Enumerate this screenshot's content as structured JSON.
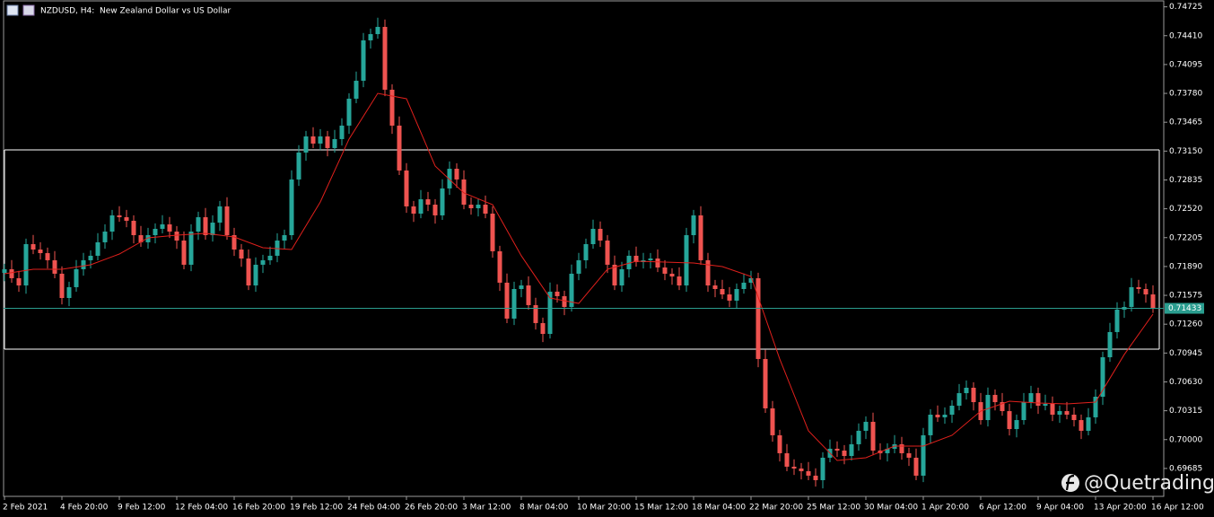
{
  "chart_data": {
    "type": "candlestick",
    "title": "NZDUSD, H4:  New Zealand Dollar vs US Dollar",
    "watermark": "@Quetrading",
    "up_color": "#26a69a",
    "down_color": "#ef5350",
    "ylim": [
      0.6939,
      0.7478
    ],
    "yticks": [
      0.74725,
      {
        "value": 0.7441,
        "label": "0.74410"
      },
      0.74095,
      {
        "value": 0.7378,
        "label": "0.73780"
      },
      0.73465,
      {
        "value": 0.7315,
        "label": "0.73150"
      },
      0.72835,
      {
        "value": 0.7252,
        "label": "0.72520"
      },
      0.72205,
      {
        "value": 0.7189,
        "label": "0.71890"
      },
      0.71575,
      {
        "value": 0.7126,
        "label": "0.71260"
      },
      0.70945,
      {
        "value": 0.7063,
        "label": "0.70630"
      },
      0.70315,
      {
        "value": 0.7,
        "label": "0.70000"
      },
      0.69685
    ],
    "price": 0.71433,
    "price_color": "#2a9d8f",
    "rectangle": [
      0.73163,
      0.70987
    ],
    "categories": [
      "2 Feb 2021",
      null,
      null,
      null,
      null,
      null,
      null,
      null,
      "4 Feb 20:00",
      null,
      null,
      null,
      null,
      null,
      null,
      null,
      "9 Feb 12:00",
      null,
      null,
      null,
      null,
      null,
      null,
      null,
      "12 Feb 04:00",
      null,
      null,
      null,
      null,
      null,
      null,
      null,
      "16 Feb 20:00",
      null,
      null,
      null,
      null,
      null,
      null,
      null,
      "19 Feb 12:00",
      null,
      null,
      null,
      null,
      null,
      null,
      null,
      "24 Feb 04:00",
      null,
      null,
      null,
      null,
      null,
      null,
      null,
      "26 Feb 20:00",
      null,
      null,
      null,
      null,
      null,
      null,
      null,
      "3 Mar 12:00",
      null,
      null,
      null,
      null,
      null,
      null,
      null,
      "8 Mar 04:00",
      null,
      null,
      null,
      null,
      null,
      null,
      null,
      "10 Mar 20:00",
      null,
      null,
      null,
      null,
      null,
      null,
      null,
      "15 Mar 12:00",
      null,
      null,
      null,
      null,
      null,
      null,
      null,
      "18 Mar 04:00",
      null,
      null,
      null,
      null,
      null,
      null,
      null,
      "22 Mar 20:00",
      null,
      null,
      null,
      null,
      null,
      null,
      null,
      "25 Mar 12:00",
      null,
      null,
      null,
      null,
      null,
      null,
      null,
      "30 Mar 04:00",
      null,
      null,
      null,
      null,
      null,
      null,
      null,
      "1 Apr 20:00",
      null,
      null,
      null,
      null,
      null,
      null,
      null,
      "6 Apr 12:00",
      null,
      null,
      null,
      null,
      null,
      null,
      null,
      "9 Apr 04:00",
      null,
      null,
      null,
      null,
      null,
      null,
      null,
      "13 Apr 20:00",
      null,
      null,
      null,
      null,
      null,
      null,
      null,
      "16 Apr 12:00"
    ],
    "ohlc": [
      [
        0.7182,
        0.7192,
        0.7173,
        0.7186
      ],
      [
        0.7186,
        0.7196,
        0.71712,
        0.71762
      ],
      [
        0.71762,
        0.71842,
        0.71613,
        0.71683
      ],
      [
        0.71683,
        0.72194,
        0.71593,
        0.72134
      ],
      [
        0.72134,
        0.72234,
        0.72025,
        0.72075
      ],
      [
        0.72075,
        0.72155,
        0.71966,
        0.72036
      ],
      [
        0.72036,
        0.72096,
        0.71868,
        0.71958
      ],
      [
        0.71958,
        0.72058,
        0.71761,
        0.71811
      ],
      [
        0.71811,
        0.71891,
        0.71476,
        0.71546
      ],
      [
        0.71546,
        0.71724,
        0.71456,
        0.71664
      ],
      [
        0.71664,
        0.7196,
        0.71614,
        0.7186
      ],
      [
        0.7186,
        0.72038,
        0.7179,
        0.71958
      ],
      [
        0.71958,
        0.72067,
        0.71868,
        0.72007
      ],
      [
        0.72007,
        0.72254,
        0.71957,
        0.72154
      ],
      [
        0.72154,
        0.72351,
        0.72084,
        0.72271
      ],
      [
        0.72271,
        0.72508,
        0.72181,
        0.72448
      ],
      [
        0.72448,
        0.72548,
        0.72378,
        0.72428
      ],
      [
        0.72428,
        0.72508,
        0.72319,
        0.72389
      ],
      [
        0.72389,
        0.72449,
        0.72142,
        0.72232
      ],
      [
        0.72232,
        0.72332,
        0.72104,
        0.72154
      ],
      [
        0.72154,
        0.72312,
        0.72084,
        0.72232
      ],
      [
        0.72232,
        0.72361,
        0.72142,
        0.72301
      ],
      [
        0.72301,
        0.7245,
        0.72251,
        0.7235
      ],
      [
        0.7235,
        0.7243,
        0.72201,
        0.72271
      ],
      [
        0.72271,
        0.72331,
        0.72083,
        0.72173
      ],
      [
        0.72173,
        0.72273,
        0.71859,
        0.71909
      ],
      [
        0.71909,
        0.72351,
        0.71839,
        0.72271
      ],
      [
        0.72271,
        0.72488,
        0.72181,
        0.72428
      ],
      [
        0.72428,
        0.72528,
        0.72182,
        0.72232
      ],
      [
        0.72232,
        0.72449,
        0.72162,
        0.72369
      ],
      [
        0.72369,
        0.72606,
        0.72279,
        0.72546
      ],
      [
        0.72546,
        0.72646,
        0.72182,
        0.72232
      ],
      [
        0.72232,
        0.72312,
        0.72005,
        0.72075
      ],
      [
        0.72075,
        0.72135,
        0.71887,
        0.71977
      ],
      [
        0.71977,
        0.72077,
        0.71633,
        0.71683
      ],
      [
        0.71683,
        0.71989,
        0.71613,
        0.71909
      ],
      [
        0.71909,
        0.72018,
        0.71819,
        0.71958
      ],
      [
        0.71958,
        0.72107,
        0.71908,
        0.72007
      ],
      [
        0.72007,
        0.72253,
        0.71937,
        0.72173
      ],
      [
        0.72173,
        0.72292,
        0.72083,
        0.72232
      ],
      [
        0.72232,
        0.7294,
        0.72182,
        0.7284
      ],
      [
        0.7284,
        0.73214,
        0.7277,
        0.73134
      ],
      [
        0.73134,
        0.7337,
        0.73044,
        0.7331
      ],
      [
        0.7331,
        0.7341,
        0.73182,
        0.73232
      ],
      [
        0.73232,
        0.7339,
        0.73162,
        0.7331
      ],
      [
        0.7331,
        0.7337,
        0.73093,
        0.73183
      ],
      [
        0.73183,
        0.73381,
        0.73133,
        0.73281
      ],
      [
        0.73281,
        0.73508,
        0.73211,
        0.73428
      ],
      [
        0.73428,
        0.73782,
        0.73338,
        0.73722
      ],
      [
        0.73722,
        0.74018,
        0.73672,
        0.73918
      ],
      [
        0.73918,
        0.74439,
        0.73848,
        0.74359
      ],
      [
        0.74359,
        0.74487,
        0.74269,
        0.74427
      ],
      [
        0.74427,
        0.74606,
        0.74377,
        0.74506
      ],
      [
        0.74506,
        0.74586,
        0.7375,
        0.7382
      ],
      [
        0.7382,
        0.7388,
        0.73338,
        0.73428
      ],
      [
        0.73428,
        0.73528,
        0.72888,
        0.72938
      ],
      [
        0.72938,
        0.73018,
        0.72476,
        0.72546
      ],
      [
        0.72546,
        0.72606,
        0.72377,
        0.72467
      ],
      [
        0.72467,
        0.72724,
        0.72417,
        0.72624
      ],
      [
        0.72624,
        0.72704,
        0.72495,
        0.72565
      ],
      [
        0.72565,
        0.72625,
        0.72358,
        0.72448
      ],
      [
        0.72448,
        0.72842,
        0.72398,
        0.72742
      ],
      [
        0.72742,
        0.73037,
        0.72672,
        0.72957
      ],
      [
        0.72957,
        0.73017,
        0.7275,
        0.7284
      ],
      [
        0.7284,
        0.7294,
        0.72515,
        0.72565
      ],
      [
        0.72565,
        0.72645,
        0.72456,
        0.72526
      ],
      [
        0.72526,
        0.72625,
        0.72436,
        0.72565
      ],
      [
        0.72565,
        0.72665,
        0.72417,
        0.72467
      ],
      [
        0.72467,
        0.72547,
        0.71986,
        0.72056
      ],
      [
        0.72056,
        0.72116,
        0.71623,
        0.71713
      ],
      [
        0.71713,
        0.71813,
        0.71271,
        0.71321
      ],
      [
        0.71321,
        0.71724,
        0.71251,
        0.71644
      ],
      [
        0.71644,
        0.71743,
        0.71554,
        0.71683
      ],
      [
        0.71683,
        0.71783,
        0.71418,
        0.71468
      ],
      [
        0.71468,
        0.71548,
        0.71202,
        0.71272
      ],
      [
        0.71272,
        0.71332,
        0.71064,
        0.71154
      ],
      [
        0.71154,
        0.71715,
        0.71104,
        0.71615
      ],
      [
        0.71615,
        0.71695,
        0.71496,
        0.71566
      ],
      [
        0.71566,
        0.71626,
        0.71358,
        0.71448
      ],
      [
        0.71448,
        0.71911,
        0.71398,
        0.71811
      ],
      [
        0.71811,
        0.72038,
        0.71741,
        0.71958
      ],
      [
        0.71958,
        0.72194,
        0.71868,
        0.72134
      ],
      [
        0.72134,
        0.72401,
        0.72084,
        0.72301
      ],
      [
        0.72301,
        0.72381,
        0.72103,
        0.72173
      ],
      [
        0.72173,
        0.72233,
        0.71819,
        0.71909
      ],
      [
        0.71909,
        0.72009,
        0.71633,
        0.71683
      ],
      [
        0.71683,
        0.7194,
        0.71613,
        0.7186
      ],
      [
        0.7186,
        0.72067,
        0.7177,
        0.72007
      ],
      [
        0.72007,
        0.72107,
        0.71888,
        0.71938
      ],
      [
        0.71938,
        0.72038,
        0.71868,
        0.71958
      ],
      [
        0.71958,
        0.72037,
        0.71868,
        0.71977
      ],
      [
        0.71977,
        0.72077,
        0.71829,
        0.71879
      ],
      [
        0.71879,
        0.71959,
        0.71741,
        0.71811
      ],
      [
        0.71811,
        0.71871,
        0.71691,
        0.71781
      ],
      [
        0.71781,
        0.71881,
        0.71633,
        0.71683
      ],
      [
        0.71683,
        0.72312,
        0.71613,
        0.72232
      ],
      [
        0.72232,
        0.72508,
        0.72142,
        0.72448
      ],
      [
        0.72448,
        0.72548,
        0.71908,
        0.71958
      ],
      [
        0.71958,
        0.72038,
        0.71613,
        0.71683
      ],
      [
        0.71683,
        0.71743,
        0.71554,
        0.71644
      ],
      [
        0.71644,
        0.71744,
        0.71535,
        0.71585
      ],
      [
        0.71585,
        0.71665,
        0.71447,
        0.71517
      ],
      [
        0.71517,
        0.71704,
        0.71427,
        0.71644
      ],
      [
        0.71644,
        0.71813,
        0.71594,
        0.71713
      ],
      [
        0.71713,
        0.71842,
        0.71643,
        0.71762
      ],
      [
        0.71762,
        0.71822,
        0.7079,
        0.7088
      ],
      [
        0.7088,
        0.7098,
        0.70291,
        0.70341
      ],
      [
        0.70341,
        0.70421,
        0.69977,
        0.70047
      ],
      [
        0.70047,
        0.70107,
        0.69761,
        0.69851
      ],
      [
        0.69851,
        0.69951,
        0.69654,
        0.69704
      ],
      [
        0.69704,
        0.69784,
        0.69614,
        0.69684
      ],
      [
        0.69684,
        0.69744,
        0.69565,
        0.69655
      ],
      [
        0.69655,
        0.69755,
        0.69556,
        0.69606
      ],
      [
        0.69606,
        0.69686,
        0.69487,
        0.69557
      ],
      [
        0.69557,
        0.69862,
        0.69467,
        0.69802
      ],
      [
        0.69802,
        0.7,
        0.69752,
        0.699
      ],
      [
        0.699,
        0.6998,
        0.6981,
        0.6988
      ],
      [
        0.6988,
        0.6994,
        0.69731,
        0.69821
      ],
      [
        0.69821,
        0.70049,
        0.69771,
        0.69949
      ],
      [
        0.69949,
        0.70176,
        0.69879,
        0.70096
      ],
      [
        0.70096,
        0.70254,
        0.70006,
        0.70194
      ],
      [
        0.70194,
        0.70294,
        0.6983,
        0.6988
      ],
      [
        0.6988,
        0.6996,
        0.69781,
        0.69851
      ],
      [
        0.69851,
        0.6996,
        0.69761,
        0.699
      ],
      [
        0.699,
        0.70049,
        0.6985,
        0.69949
      ],
      [
        0.69949,
        0.70029,
        0.69781,
        0.69851
      ],
      [
        0.69851,
        0.69911,
        0.69712,
        0.69802
      ],
      [
        0.69802,
        0.69902,
        0.69556,
        0.69606
      ],
      [
        0.69606,
        0.70127,
        0.69536,
        0.70047
      ],
      [
        0.70047,
        0.70332,
        0.69957,
        0.70272
      ],
      [
        0.70272,
        0.70372,
        0.70193,
        0.70243
      ],
      [
        0.70243,
        0.70352,
        0.70173,
        0.70272
      ],
      [
        0.70272,
        0.7043,
        0.70182,
        0.7037
      ],
      [
        0.7037,
        0.70607,
        0.7032,
        0.70507
      ],
      [
        0.70507,
        0.70646,
        0.70437,
        0.70566
      ],
      [
        0.70566,
        0.70626,
        0.70319,
        0.70409
      ],
      [
        0.70409,
        0.70509,
        0.70163,
        0.70213
      ],
      [
        0.70213,
        0.70568,
        0.70143,
        0.70488
      ],
      [
        0.70488,
        0.70548,
        0.70319,
        0.70409
      ],
      [
        0.70409,
        0.70509,
        0.70261,
        0.70311
      ],
      [
        0.70311,
        0.70391,
        0.70045,
        0.70115
      ],
      [
        0.70115,
        0.70273,
        0.70025,
        0.70213
      ],
      [
        0.70213,
        0.70509,
        0.70163,
        0.70409
      ],
      [
        0.70409,
        0.70587,
        0.70339,
        0.70507
      ],
      [
        0.70507,
        0.70567,
        0.7028,
        0.7037
      ],
      [
        0.7037,
        0.7049,
        0.7032,
        0.7039
      ],
      [
        0.7039,
        0.7047,
        0.70202,
        0.70272
      ],
      [
        0.70272,
        0.70371,
        0.70182,
        0.70311
      ],
      [
        0.70311,
        0.70411,
        0.70222,
        0.70272
      ],
      [
        0.70272,
        0.70352,
        0.70143,
        0.70213
      ],
      [
        0.70213,
        0.70273,
        0.70006,
        0.70096
      ],
      [
        0.70096,
        0.70343,
        0.70046,
        0.70243
      ],
      [
        0.70243,
        0.70548,
        0.70173,
        0.70468
      ],
      [
        0.70468,
        0.70959,
        0.70378,
        0.70899
      ],
      [
        0.70899,
        0.71274,
        0.70849,
        0.71174
      ],
      [
        0.71174,
        0.71499,
        0.71104,
        0.71419
      ],
      [
        0.71419,
        0.71508,
        0.71329,
        0.71448
      ],
      [
        0.71448,
        0.71764,
        0.71398,
        0.71664
      ],
      [
        0.71664,
        0.71744,
        0.71594,
        0.71644
      ],
      [
        0.71644,
        0.71704,
        0.71495,
        0.71585
      ],
      [
        0.71585,
        0.71685,
        0.71383,
        0.71433
      ]
    ],
    "ma": {
      "color": "#e0201c",
      "values": [
        0.71811,
        0.7186,
        0.7186,
        0.71909,
        0.72026,
        0.72203,
        0.72232,
        0.72252,
        0.72212,
        0.72095,
        0.72075,
        0.72595,
        0.73281,
        0.7378,
        0.73722,
        0.72987,
        0.72693,
        0.72565,
        0.72007,
        0.71546,
        0.71487,
        0.7186,
        0.71948,
        0.71938,
        0.71928,
        0.71889,
        0.71781,
        0.7088,
        0.70096,
        0.69772,
        0.69802,
        0.69929,
        0.69929,
        0.70047,
        0.70311,
        0.70419,
        0.70399,
        0.7039,
        0.70409,
        0.70929,
        0.7137
      ]
    }
  }
}
